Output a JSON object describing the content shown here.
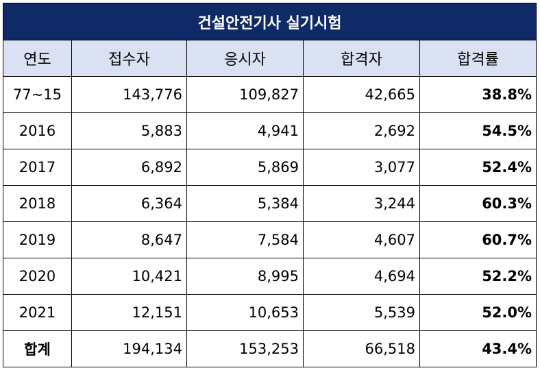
{
  "table": {
    "title": "건설안전기사 실기시험",
    "headers": [
      "연도",
      "접수자",
      "응시자",
      "합격자",
      "합격률"
    ],
    "rows": [
      [
        "77~15",
        "143,776",
        "109,827",
        "42,665",
        "38.8%"
      ],
      [
        "2016",
        "5,883",
        "4,941",
        "2,692",
        "54.5%"
      ],
      [
        "2017",
        "6,892",
        "5,869",
        "3,077",
        "52.4%"
      ],
      [
        "2018",
        "6,364",
        "5,384",
        "3,244",
        "60.3%"
      ],
      [
        "2019",
        "8,647",
        "7,584",
        "4,607",
        "60.7%"
      ],
      [
        "2020",
        "10,421",
        "8,995",
        "4,694",
        "52.2%"
      ],
      [
        "2021",
        "12,151",
        "10,653",
        "5,539",
        "52.0%"
      ]
    ],
    "total": [
      "합계",
      "194,134",
      "153,253",
      "66,518",
      "43.4%"
    ]
  },
  "colors": {
    "title_bg": "#0f2a66",
    "header_bg": "#d9e1f2"
  }
}
